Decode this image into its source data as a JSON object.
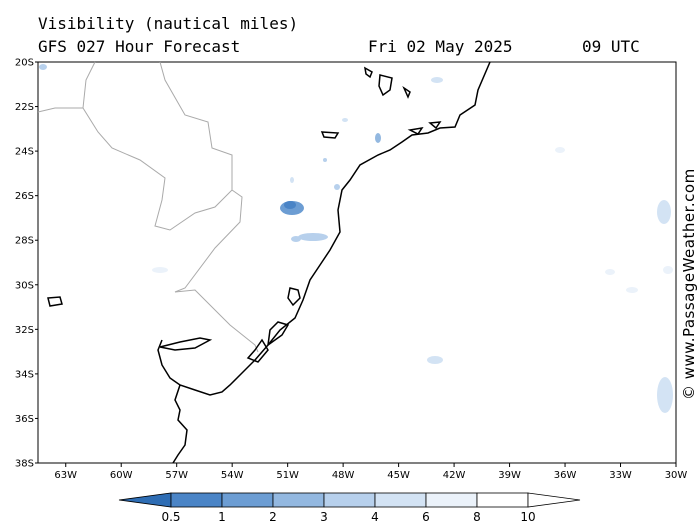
{
  "header": {
    "title": "Visibility (nautical miles)",
    "subtitle": "GFS 027 Hour Forecast",
    "date": "Fri 02 May 2025",
    "time": "09 UTC"
  },
  "credit": "© www.PassageWeather.com",
  "map": {
    "region": "South Atlantic, off southern Brazil and Uruguay",
    "lat_labels": [
      "20S",
      "22S",
      "24S",
      "26S",
      "28S",
      "30S",
      "32S",
      "34S",
      "36S",
      "38S"
    ],
    "lon_labels": [
      "63W",
      "60W",
      "57W",
      "54W",
      "51W",
      "48W",
      "45W",
      "42W",
      "39W",
      "36W",
      "33W",
      "30W"
    ],
    "lat_range": [
      -38,
      -20
    ],
    "lon_range": [
      -64.5,
      -30
    ],
    "features": [
      "coastline",
      "country-borders",
      "reduced-visibility-patches"
    ]
  },
  "legend": {
    "labels": [
      "0.5",
      "1",
      "2",
      "3",
      "4",
      "6",
      "8",
      "10"
    ],
    "colors": [
      "#2e6db4",
      "#4a84c6",
      "#6c9dd3",
      "#93b8e0",
      "#b7d0ec",
      "#d3e3f4",
      "#ebf2fa",
      "#ffffff"
    ]
  }
}
